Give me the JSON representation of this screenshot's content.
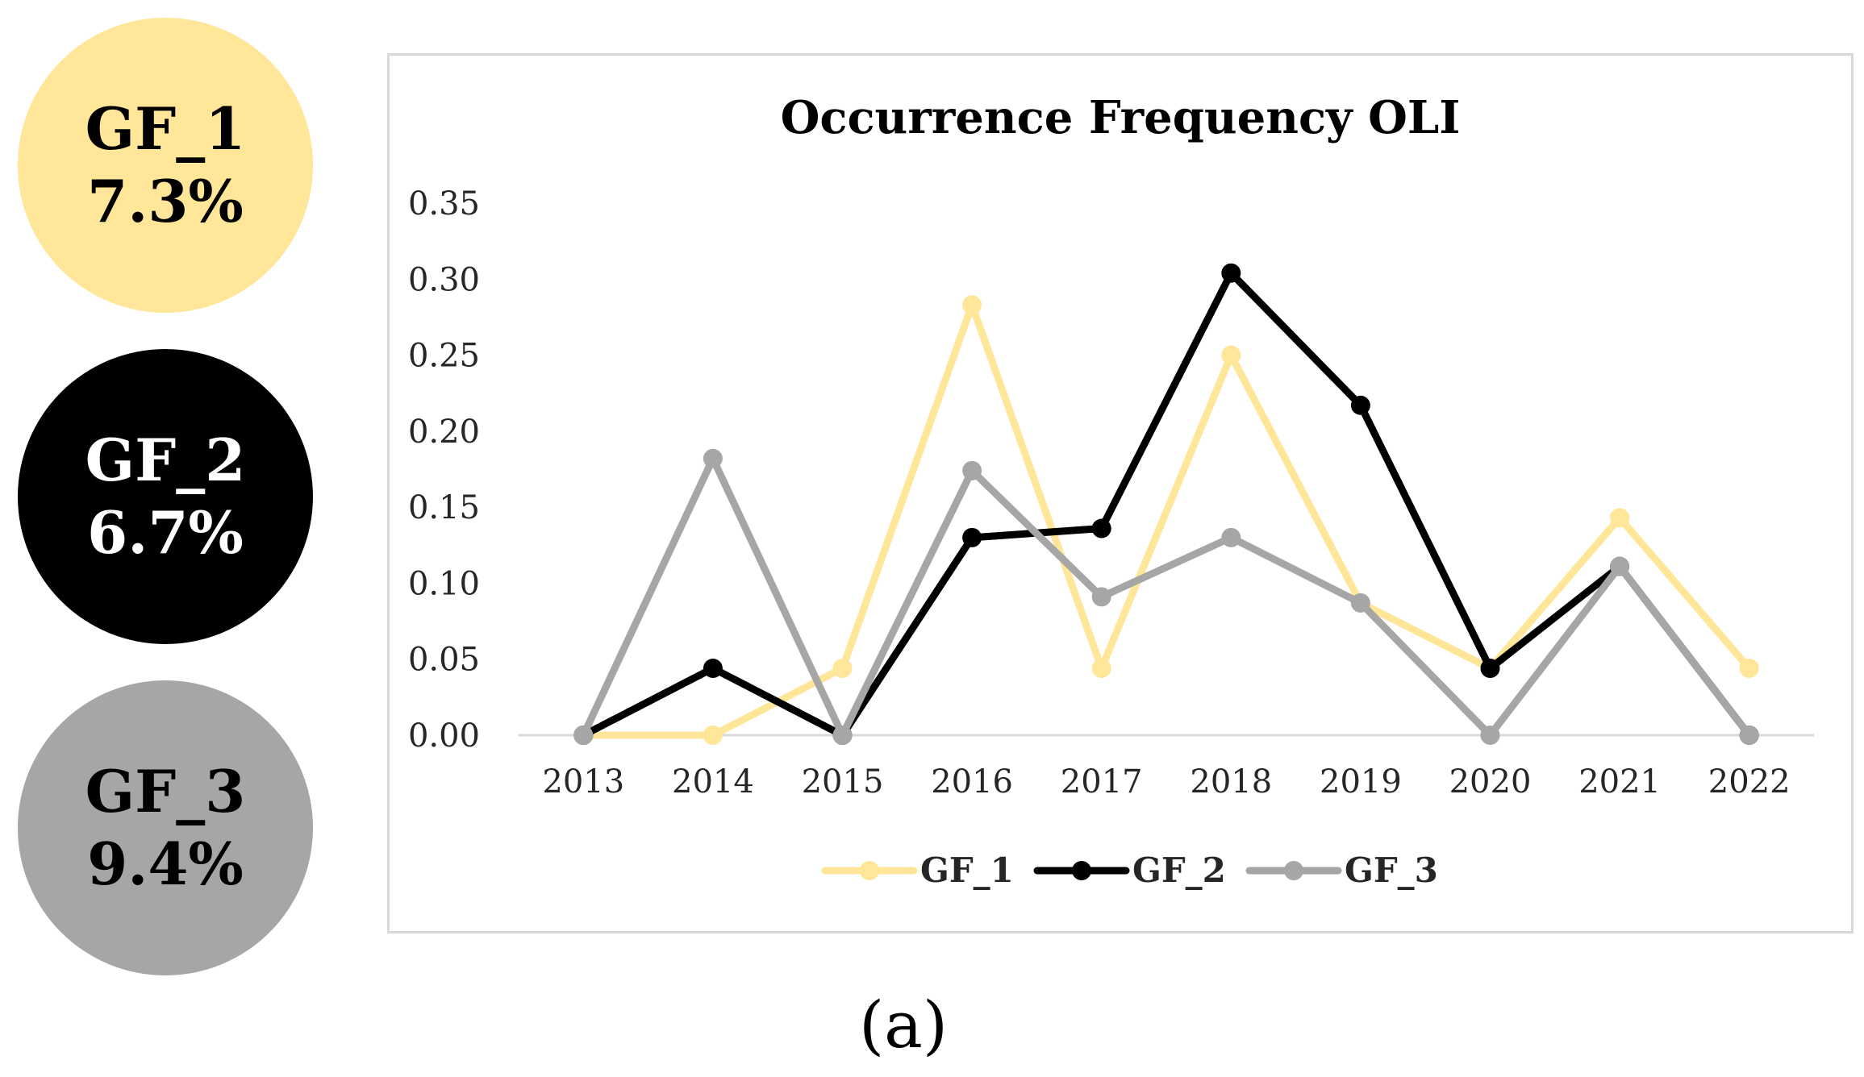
{
  "badges": [
    {
      "name": "GF_1",
      "percent": "7.3%",
      "bg": "#ffe699",
      "fg": "#000000"
    },
    {
      "name": "GF_2",
      "percent": "6.7%",
      "bg": "#000000",
      "fg": "#ffffff"
    },
    {
      "name": "GF_3",
      "percent": "9.4%",
      "bg": "#a6a6a6",
      "fg": "#000000"
    }
  ],
  "chart_data": {
    "type": "line",
    "title": "Occurrence Frequency OLI",
    "xlabel": "",
    "ylabel": "",
    "categories": [
      "2013",
      "2014",
      "2015",
      "2016",
      "2017",
      "2018",
      "2019",
      "2020",
      "2021",
      "2022"
    ],
    "ylim": [
      0,
      0.35
    ],
    "yticks": [
      "0.00",
      "0.05",
      "0.10",
      "0.15",
      "0.20",
      "0.25",
      "0.30",
      "0.35"
    ],
    "grid": false,
    "legend": "bottom",
    "series": [
      {
        "name": "GF_1",
        "color": "#ffe699",
        "values": [
          0,
          0,
          0.044,
          0.283,
          0.044,
          0.25,
          0.087,
          0.044,
          0.143,
          0.044
        ]
      },
      {
        "name": "GF_2",
        "color": "#000000",
        "values": [
          0,
          0.044,
          0,
          0.13,
          0.136,
          0.304,
          0.217,
          0.044,
          0.111,
          0
        ]
      },
      {
        "name": "GF_3",
        "color": "#a6a6a6",
        "values": [
          0,
          0.182,
          0,
          0.174,
          0.091,
          0.13,
          0.087,
          0,
          0.111,
          0
        ]
      }
    ]
  },
  "panel_label": "(a)"
}
